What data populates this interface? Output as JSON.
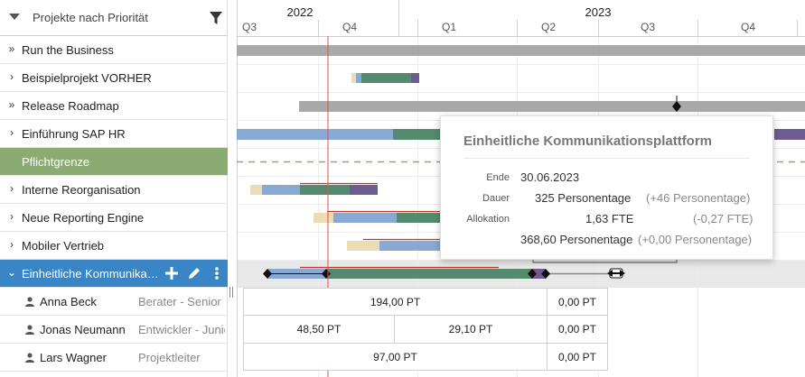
{
  "header": {
    "panel_title": "Projekte nach Priorität",
    "years": [
      "2022",
      "2023"
    ],
    "quarters": [
      "Q3",
      "Q4",
      "Q1",
      "Q2",
      "Q3",
      "Q4"
    ]
  },
  "rows": [
    {
      "label": "Run the Business",
      "expander": "»"
    },
    {
      "label": "Beispielprojekt VORHER",
      "expander": "›"
    },
    {
      "label": "Release Roadmap",
      "expander": "»"
    },
    {
      "label": "Einführung SAP HR",
      "expander": "›"
    },
    {
      "label": "Pflichtgrenze",
      "expander": ""
    },
    {
      "label": "Interne Reorganisation",
      "expander": "›"
    },
    {
      "label": "Neue Reporting Engine",
      "expander": "›"
    },
    {
      "label": "Mobiler Vertrieb",
      "expander": "›"
    },
    {
      "label": "Einheitliche Kommunikationsplattform",
      "expander": "⌄"
    }
  ],
  "resources": [
    {
      "name": "Anna Beck",
      "role": "Berater - Senior"
    },
    {
      "name": "Jonas Neumann",
      "role": "Entwickler - Junior"
    },
    {
      "name": "Lars Wagner",
      "role": "Projektleiter"
    }
  ],
  "allocation": {
    "anna": [
      "194,00 PT",
      "0,00 PT"
    ],
    "jonas": [
      "48,50 PT",
      "29,10 PT",
      "0,00 PT"
    ],
    "lars": [
      "97,00 PT",
      "0,00 PT"
    ]
  },
  "tooltip": {
    "title": "Einheitliche Kommunikationsplattform",
    "ende_label": "Ende",
    "ende_value": "30.06.2023",
    "dauer_label": "Dauer",
    "dauer_value": "325 Personentage",
    "dauer_delta": "(+46 Personentage)",
    "alloc_label": "Allokation",
    "alloc_value": "1,63 FTE",
    "alloc_delta": "(-0,27 FTE)",
    "total_value": "368,60 Personentage",
    "total_delta": "(+0,00 Personentage)"
  },
  "colors": {
    "gray_bar": "#a9a9a9",
    "blue": "#87a9d2",
    "green": "#568a70",
    "purple": "#6e5b8f",
    "beige": "#ecdcb3",
    "today_line": "#e0504a",
    "pflicht_row": "#8aac73",
    "active_row": "#3a85c6"
  }
}
